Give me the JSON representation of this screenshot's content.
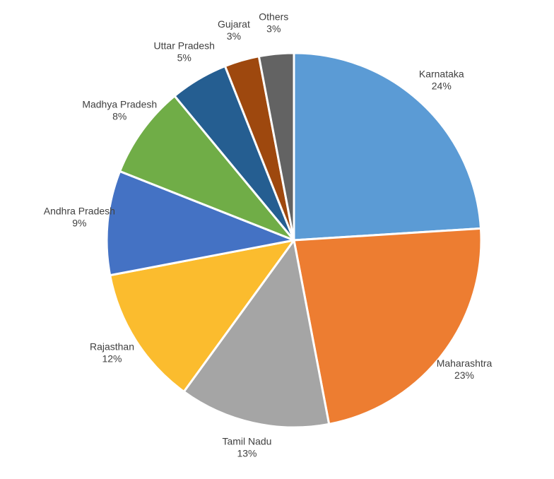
{
  "chart_data": {
    "type": "pie",
    "categories": [
      "Karnataka",
      "Maharashtra",
      "Tamil Nadu",
      "Rajasthan",
      "Andhra Pradesh",
      "Madhya Pradesh",
      "Uttar Pradesh",
      "Gujarat",
      "Others"
    ],
    "values": [
      24,
      23,
      13,
      12,
      9,
      8,
      5,
      3,
      3
    ],
    "value_labels": [
      "24%",
      "23%",
      "13%",
      "12%",
      "9%",
      "8%",
      "5%",
      "3%",
      "3%"
    ],
    "colors": [
      "#5b9bd5",
      "#ed7d31",
      "#a5a5a5",
      "#fbbc2e",
      "#4472c4",
      "#70ad47",
      "#255e91",
      "#9e480e",
      "#636363"
    ]
  }
}
